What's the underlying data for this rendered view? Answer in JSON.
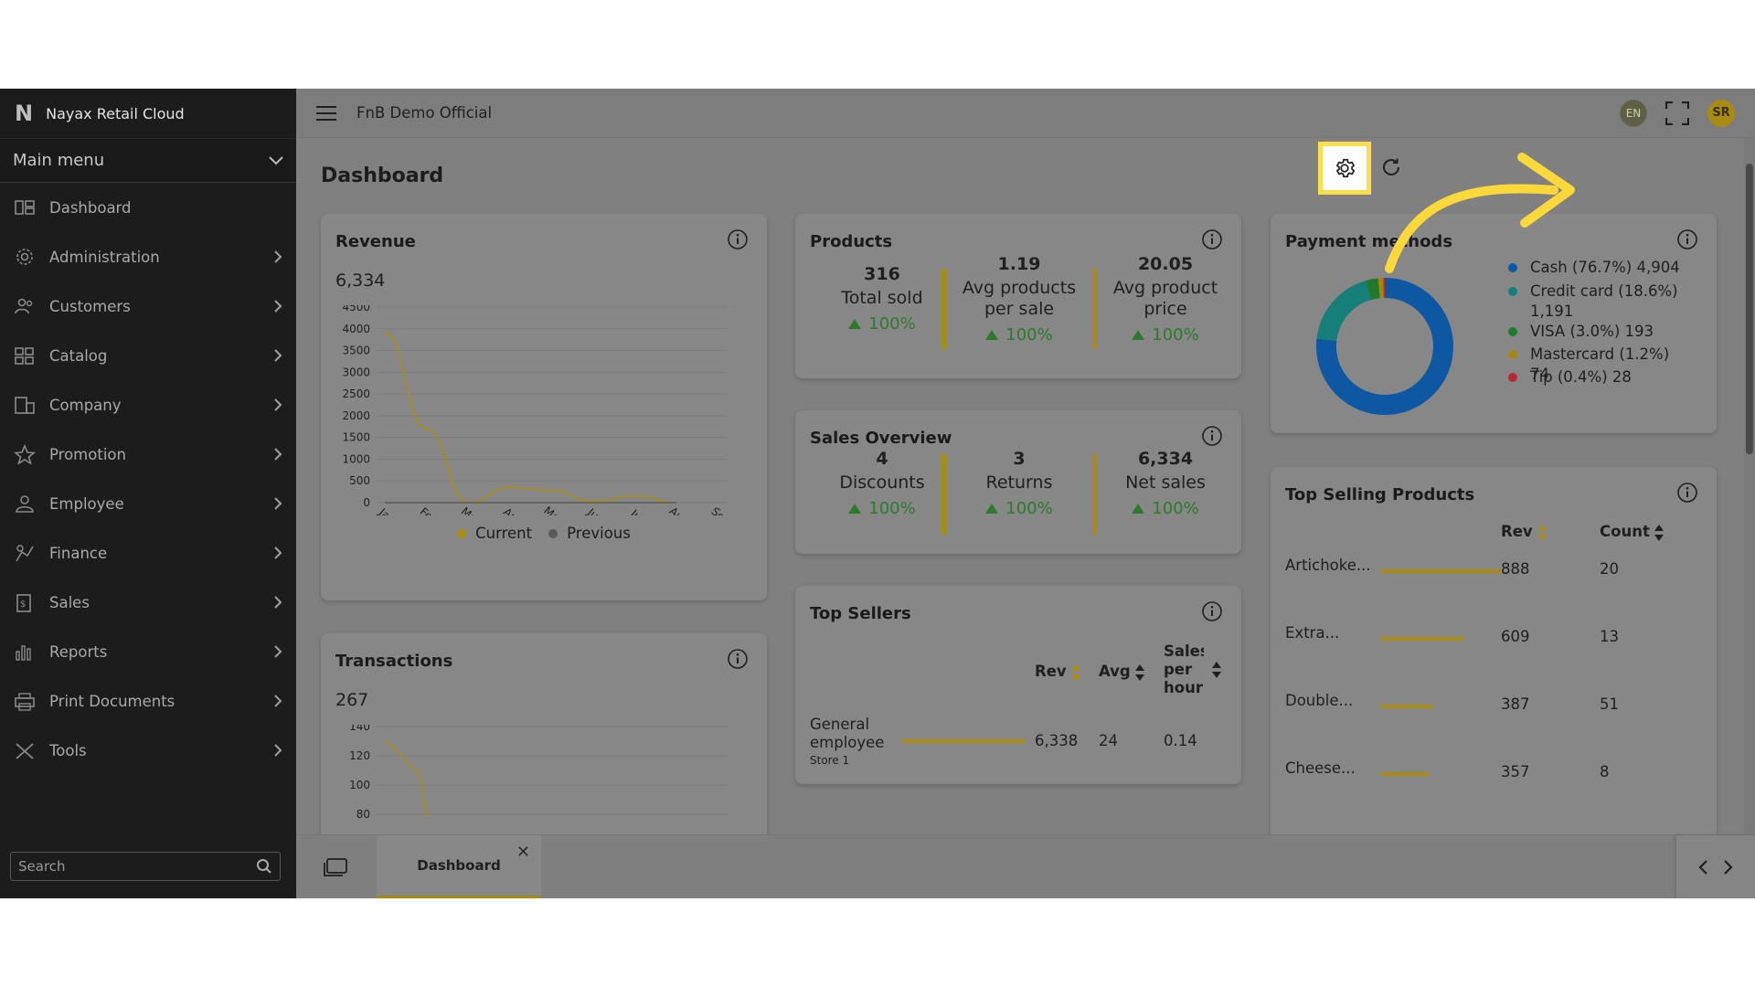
{
  "app": {
    "brand_initial": "N",
    "title": "Nayax Retail Cloud"
  },
  "sidebar": {
    "main_menu_label": "Main menu",
    "items": [
      {
        "label": "Dashboard",
        "icon": "dashboard-icon"
      },
      {
        "label": "Administration",
        "icon": "gear-icon"
      },
      {
        "label": "Customers",
        "icon": "users-icon"
      },
      {
        "label": "Catalog",
        "icon": "grid-icon"
      },
      {
        "label": "Company",
        "icon": "building-icon"
      },
      {
        "label": "Promotion",
        "icon": "star-icon"
      },
      {
        "label": "Employee",
        "icon": "user-icon"
      },
      {
        "label": "Finance",
        "icon": "finance-icon"
      },
      {
        "label": "Sales",
        "icon": "sales-icon"
      },
      {
        "label": "Reports",
        "icon": "bar-chart-icon"
      },
      {
        "label": "Print Documents",
        "icon": "printer-icon"
      },
      {
        "label": "Tools",
        "icon": "tools-icon"
      }
    ],
    "search_placeholder": "Search"
  },
  "topbar": {
    "org_name": "FnB Demo Official",
    "lang": "EN",
    "user_initials": "SR"
  },
  "page": {
    "title": "Dashboard"
  },
  "revenue": {
    "title": "Revenue",
    "value": "6,334",
    "legend_current": "Current",
    "legend_previous": "Previous"
  },
  "transactions": {
    "title": "Transactions",
    "value": "267"
  },
  "products": {
    "title": "Products",
    "stats": [
      {
        "value": "316",
        "label": "Total sold",
        "pct": "100%"
      },
      {
        "value": "1.19",
        "label": "Avg products per sale",
        "pct": "100%"
      },
      {
        "value": "20.05",
        "label": "Avg product price",
        "pct": "100%"
      }
    ]
  },
  "sales_overview": {
    "title": "Sales Overview",
    "stats": [
      {
        "value": "4",
        "label": "Discounts",
        "pct": "100%"
      },
      {
        "value": "3",
        "label": "Returns",
        "pct": "100%"
      },
      {
        "value": "6,334",
        "label": "Net sales",
        "pct": "100%"
      }
    ]
  },
  "top_sellers": {
    "title": "Top Sellers",
    "headers": {
      "rev": "Rev",
      "avg": "Avg",
      "sales_per_hour": "Sales per hour"
    },
    "rows": [
      {
        "name": "General employee",
        "store": "Store 1",
        "rev": "6,338",
        "avg": "24",
        "sph": "0.14",
        "share": 1.0
      }
    ]
  },
  "payment_methods": {
    "title": "Payment methods",
    "items": [
      {
        "label": "Cash (76.7%) 4,904",
        "color": "#0d57a3",
        "value": 76.7
      },
      {
        "label": "Credit card (18.6%) 1,191",
        "color": "#177f7a",
        "value": 18.6
      },
      {
        "label": "VISA (3.0%) 193",
        "color": "#1f7a2d",
        "value": 3.0
      },
      {
        "label": "Mastercard (1.2%) 74",
        "color": "#a68510",
        "value": 1.2
      },
      {
        "label": "Tip (0.4%) 28",
        "color": "#b52a35",
        "value": 0.4
      }
    ]
  },
  "top_selling": {
    "title": "Top Selling Products",
    "headers": {
      "rev": "Rev",
      "count": "Count"
    },
    "rows": [
      {
        "name": "Artichoke...",
        "rev": "888",
        "count": "20",
        "share": 1.0
      },
      {
        "name": "Extra...",
        "rev": "609",
        "count": "13",
        "share": 0.686
      },
      {
        "name": "Double...",
        "rev": "387",
        "count": "51",
        "share": 0.436
      },
      {
        "name": "Cheese...",
        "rev": "357",
        "count": "8",
        "share": 0.402
      }
    ]
  },
  "bottom_tabs": {
    "active_tab": "Dashboard"
  },
  "chart_data": [
    {
      "type": "line",
      "title": "Revenue",
      "categories": [
        "Jan",
        "Feb",
        "Mar",
        "Apr",
        "May",
        "Jun",
        "Jul",
        "Aug",
        "Sep"
      ],
      "series": [
        {
          "name": "Current",
          "values": [
            3900,
            1700,
            0,
            350,
            280,
            30,
            150,
            0,
            null
          ]
        },
        {
          "name": "Previous",
          "values": [
            0,
            0,
            0,
            0,
            0,
            0,
            0,
            0,
            null
          ]
        }
      ],
      "yticks": [
        0,
        500,
        1000,
        1500,
        2000,
        2500,
        3000,
        3500,
        4000,
        4500
      ],
      "ylim": [
        0,
        4500
      ],
      "colors": {
        "Current": "#a98b14",
        "Previous": "#5a5a5a"
      }
    },
    {
      "type": "line",
      "title": "Transactions",
      "yticks": [
        80,
        100,
        120,
        140
      ],
      "series": [
        {
          "name": "Current",
          "values": [
            130,
            110,
            78
          ]
        }
      ]
    }
  ]
}
